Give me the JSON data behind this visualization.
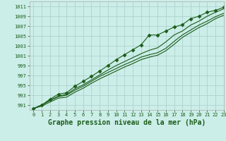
{
  "title": "Graphe pression niveau de la mer (hPa)",
  "bg_color": "#cceee8",
  "grid_color": "#aacccc",
  "line_color": "#1a5c1a",
  "xlim": [
    -0.5,
    23
  ],
  "ylim": [
    990.0,
    1012.0
  ],
  "yticks": [
    991,
    993,
    995,
    997,
    999,
    1001,
    1003,
    1005,
    1007,
    1009,
    1011
  ],
  "xticks": [
    0,
    1,
    2,
    3,
    4,
    5,
    6,
    7,
    8,
    9,
    10,
    11,
    12,
    13,
    14,
    15,
    16,
    17,
    18,
    19,
    20,
    21,
    22,
    23
  ],
  "series": [
    [
      990.3,
      991.0,
      992.2,
      993.2,
      993.5,
      994.8,
      995.8,
      996.8,
      997.9,
      999.0,
      1000.2,
      1001.2,
      1002.2,
      1003.2,
      1005.2,
      1005.2,
      1006.0,
      1006.8,
      1007.3,
      1008.5,
      1009.0,
      1009.8,
      1010.2,
      1010.8
    ],
    [
      990.3,
      991.0,
      992.0,
      992.8,
      993.2,
      994.3,
      995.1,
      996.1,
      997.1,
      998.1,
      999.0,
      999.8,
      1000.6,
      1001.4,
      1002.1,
      1002.6,
      1003.8,
      1005.2,
      1006.0,
      1007.2,
      1008.0,
      1009.0,
      1009.8,
      1010.5
    ],
    [
      990.3,
      991.0,
      991.9,
      992.7,
      993.0,
      994.0,
      994.8,
      995.8,
      996.8,
      997.6,
      998.4,
      999.2,
      999.9,
      1000.7,
      1001.2,
      1001.6,
      1002.5,
      1003.9,
      1005.2,
      1006.2,
      1007.2,
      1008.0,
      1008.9,
      1009.6
    ],
    [
      990.3,
      990.8,
      991.6,
      992.4,
      992.6,
      993.6,
      994.4,
      995.4,
      996.3,
      997.1,
      997.9,
      998.7,
      999.4,
      1000.2,
      1000.7,
      1001.1,
      1002.0,
      1003.3,
      1004.7,
      1005.7,
      1006.7,
      1007.5,
      1008.5,
      1009.2
    ]
  ],
  "marker_series_idx": 0,
  "marker": "D",
  "marker_size": 2.5,
  "linewidth": 0.8,
  "title_fontsize": 7.0,
  "tick_fontsize": 5.0,
  "label_color": "#1a5c1a"
}
